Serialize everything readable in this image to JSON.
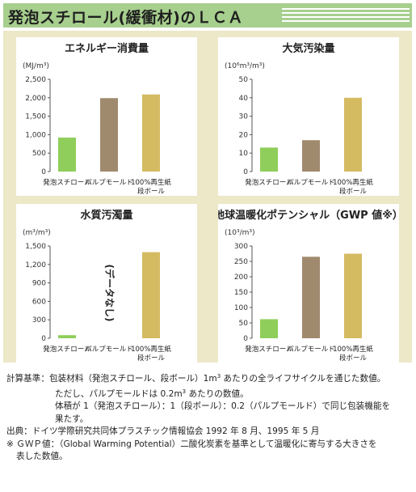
{
  "header": {
    "title": "発泡スチロール(緩衝材)のＬＣＡ"
  },
  "colors": {
    "header_bg": "#a7cf8e",
    "grid_bg": "#ece8c8",
    "bar_eps": "#8fce5a",
    "bar_pulp": "#a08a6e",
    "bar_cardboard": "#d4bb62"
  },
  "chart_data": [
    {
      "type": "bar",
      "title": "エネルギー消費量",
      "unit_label": "(MJ/m³)",
      "categories": [
        "発泡スチロール",
        "パルプモールド",
        "100%再生紙\n段ボール"
      ],
      "values": [
        920,
        1990,
        2090
      ],
      "ylim": [
        0,
        2500
      ],
      "yticks": [
        "0",
        "500",
        "1,000",
        "1,500",
        "2,000",
        "2,500"
      ],
      "grid": false
    },
    {
      "type": "bar",
      "title": "大気汚染量",
      "unit_label": "(10⁶m³/m³)",
      "categories": [
        "発泡スチロール",
        "パルプモールド",
        "100%再生紙\n段ボール"
      ],
      "values": [
        13,
        17,
        40
      ],
      "ylim": [
        0,
        50
      ],
      "yticks": [
        "0",
        "10",
        "20",
        "30",
        "40",
        "50"
      ],
      "grid": false
    },
    {
      "type": "bar",
      "title": "水質汚濁量",
      "unit_label": "(m³/m³)",
      "categories": [
        "発泡スチロール",
        "パルプモールド",
        "100%再生紙\n段ボール"
      ],
      "values": [
        50,
        null,
        1400
      ],
      "ylim": [
        0,
        1500
      ],
      "yticks": [
        "0",
        "300",
        "600",
        "900",
        "1,200",
        "1,500"
      ],
      "annotation": "(データなし)",
      "grid": false
    },
    {
      "type": "bar",
      "title": "地球温暖化ポテンシャル（GWP 値※）",
      "unit_label": "(10³/m³)",
      "categories": [
        "発泡スチロール",
        "パルプモールド",
        "100%再生紙\n段ボール"
      ],
      "values": [
        62,
        265,
        275
      ],
      "ylim": [
        0,
        300
      ],
      "yticks": [
        "0",
        "50",
        "100",
        "150",
        "200",
        "250",
        "300"
      ],
      "grid": false
    }
  ],
  "notes": {
    "basis_label": "計算基準：",
    "basis_line1_a": "包装材料（発泡スチロール、段ボール）1m",
    "basis_line1_sup": "3",
    "basis_line1_b": " あたりの全ライフサイクルを通じた数値。",
    "basis_line2_a": "ただし、パルプモールドは 0.2m",
    "basis_line2_sup": "3",
    "basis_line2_b": " あたりの数値。",
    "basis_line3": "体積が 1（発泡スチロール）：1（段ボール）：0.2（パルプモールド）で同じ包装機能を",
    "basis_line4": "果たす。",
    "source": "出典：ドイツ学際研究共同体プラスチック情報協会 1992 年 8 月、1995 年 5 月",
    "gwp_line1": "※ ＧＷＰ値：（Global Warming Potential）二酸化炭素を基準として温暖化に寄与する大きさを",
    "gwp_line2": "表した数値。"
  }
}
